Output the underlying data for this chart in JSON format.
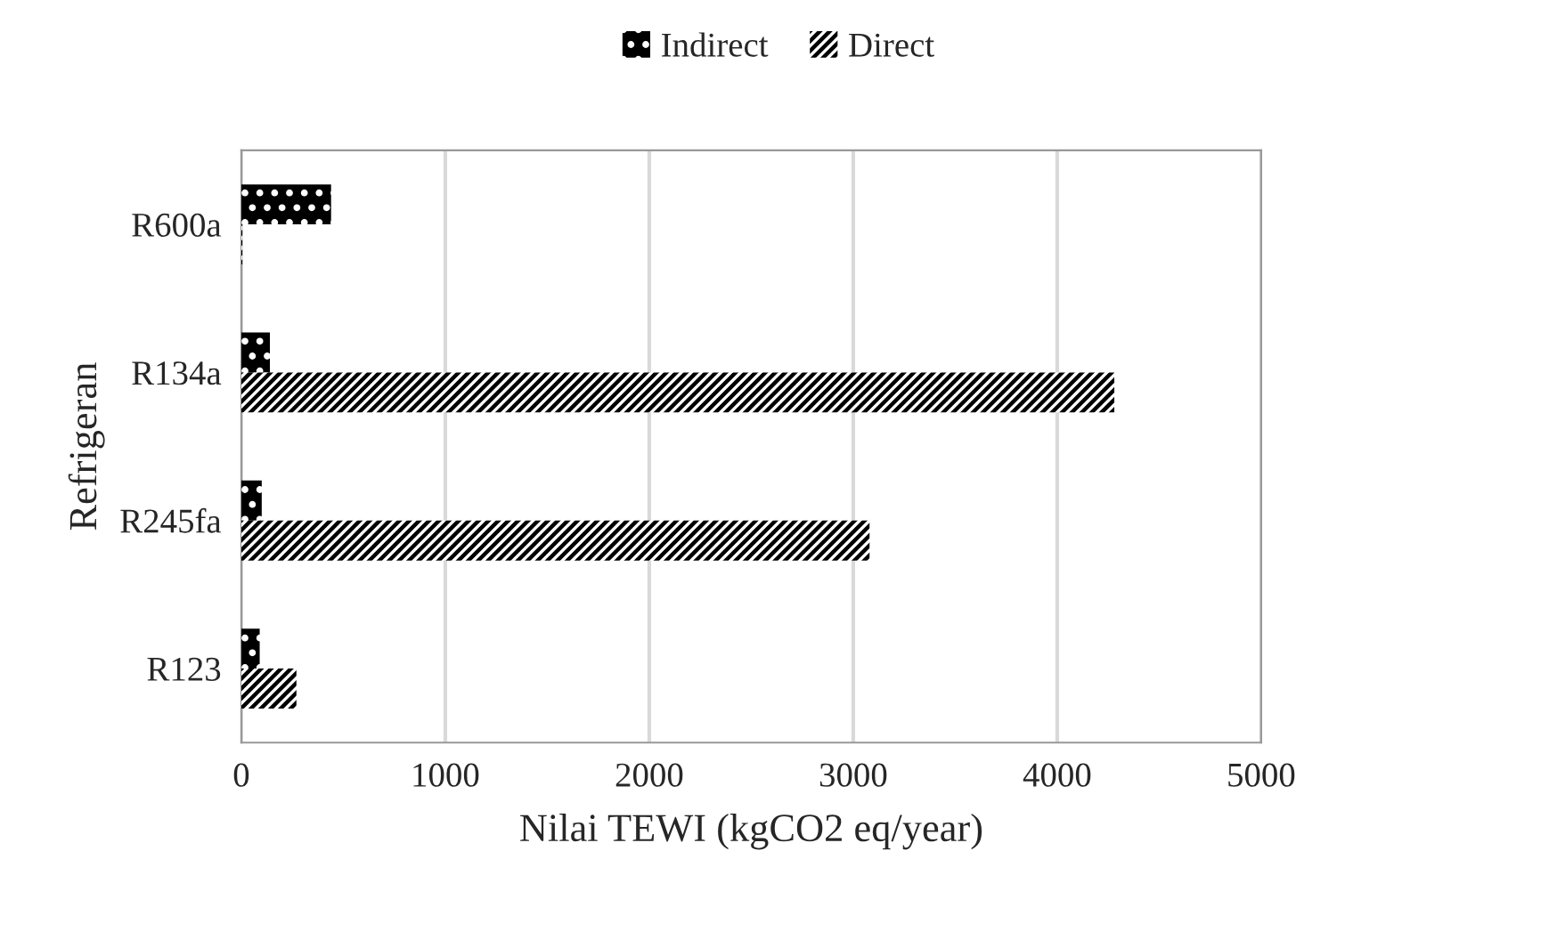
{
  "chart_data": {
    "type": "bar",
    "orientation": "horizontal",
    "xlabel": "Nilai TEWI (kgCO2 eq/year)",
    "ylabel": "Refrigeran",
    "categories": [
      "R600a",
      "R134a",
      "R245fa",
      "R123"
    ],
    "series": [
      {
        "name": "Indirect",
        "color": "#000000",
        "values": [
          440,
          140,
          100,
          90
        ]
      },
      {
        "name": "Direct",
        "color": "#ffffff",
        "values": [
          5,
          4280,
          3080,
          270
        ]
      }
    ],
    "xlim": [
      0,
      5000
    ],
    "xticks": [
      0,
      1000,
      2000,
      3000,
      4000,
      5000
    ],
    "grid": "x",
    "legend": "top"
  }
}
